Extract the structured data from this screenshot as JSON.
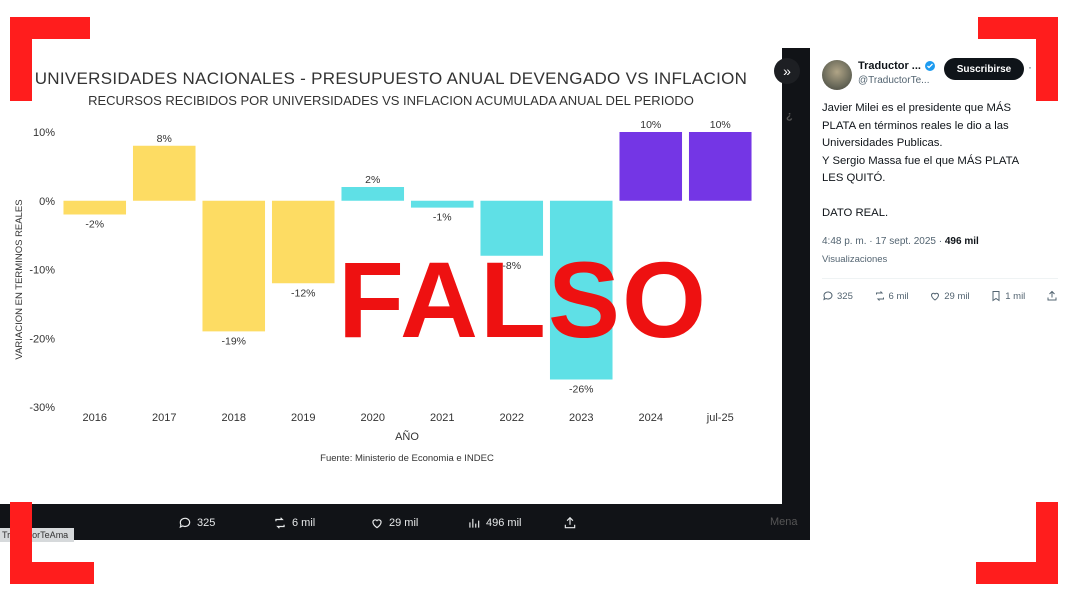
{
  "chart": {
    "title": "UNIVERSIDADES NACIONALES - PRESUPUESTO ANUAL DEVENGADO VS INFLACION",
    "subtitle": "RECURSOS RECIBIDOS POR UNIVERSIDADES VS INFLACION ACUMULADA ANUAL DEL PERIODO",
    "source": "Fuente: Ministerio de Economia e INDEC"
  },
  "chart_data": {
    "type": "bar",
    "title": "UNIVERSIDADES NACIONALES - PRESUPUESTO ANUAL DEVENGADO VS INFLACION",
    "subtitle": "RECURSOS RECIBIDOS POR UNIVERSIDADES VS INFLACION ACUMULADA ANUAL DEL PERIODO",
    "xlabel": "AÑO",
    "ylabel": "VARIACION EN TERMINOS REALES",
    "categories": [
      "2016",
      "2017",
      "2018",
      "2019",
      "2020",
      "2021",
      "2022",
      "2023",
      "2024",
      "jul-25"
    ],
    "values": [
      -2,
      8,
      -19,
      -12,
      2,
      -1,
      -8,
      -26,
      10,
      10
    ],
    "labels": [
      "-2%",
      "8%",
      "-19%",
      "-12%",
      "2%",
      "-1%",
      "-8%",
      "-26%",
      "10%",
      "10%"
    ],
    "colors": [
      "#fddc63",
      "#fddc63",
      "#fddc63",
      "#fddc63",
      "#5fe0e6",
      "#5fe0e6",
      "#5fe0e6",
      "#5fe0e6",
      "#7436e5",
      "#7436e5"
    ],
    "ylim": [
      -30,
      10
    ],
    "yticks": [
      10,
      0,
      -10,
      -20,
      -30
    ],
    "ytick_labels": [
      "10%",
      "0%",
      "-10%",
      "-20%",
      "-30%"
    ],
    "grid": false,
    "source": "Fuente: Ministerio de Economia e INDEC"
  },
  "stamp": "FALSO",
  "expand_icon": "»",
  "bottom_bar": {
    "replies": "325",
    "reposts": "6 mil",
    "likes": "29 mil",
    "views": "496 mil",
    "handle": "TraductorTeAma",
    "faded_right": "Mena"
  },
  "tweet": {
    "name": "Traductor ...",
    "handle": "@TraductorTe...",
    "subscribe": "Suscribirse",
    "more": "·",
    "lines": [
      "Javier Milei es el presidente que MÁS",
      "PLATA en términos reales le dio a las",
      "Universidades Publicas.",
      "Y Sergio Massa fue el que MÁS PLATA",
      "LES QUITÓ.",
      "",
      "DATO REAL."
    ],
    "time": "4:48 p. m. · 17 sept. 2025 · ",
    "views_count": "496 mil",
    "views_label": "Visualizaciones",
    "replies": "325",
    "reposts": "6 mil",
    "likes": "29 mil",
    "bookmarks": "1 mil"
  },
  "colors": {
    "accent_red": "#ff1d1d",
    "stamp_red": "#ee1111",
    "dark": "#111317"
  }
}
